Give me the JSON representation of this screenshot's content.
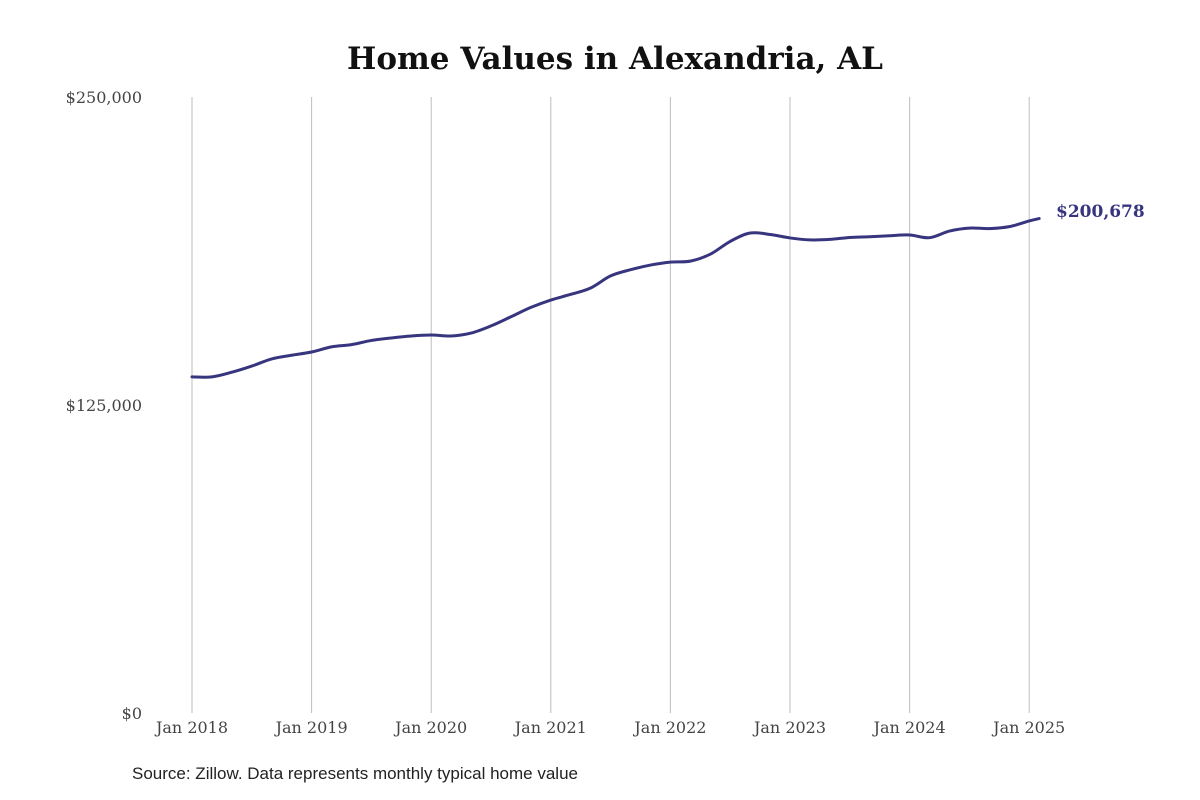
{
  "chart_data": {
    "type": "line",
    "title": "Home Values in Alexandria, AL",
    "xlabel": "",
    "ylabel": "",
    "ylim": [
      0,
      250000
    ],
    "y_ticks": [
      {
        "value": 0,
        "label": "$0"
      },
      {
        "value": 125000,
        "label": "$125,000"
      },
      {
        "value": 250000,
        "label": "$250,000"
      }
    ],
    "x_ticks": [
      {
        "date": "2018-01",
        "label": "Jan 2018"
      },
      {
        "date": "2019-01",
        "label": "Jan 2019"
      },
      {
        "date": "2020-01",
        "label": "Jan 2020"
      },
      {
        "date": "2021-01",
        "label": "Jan 2021"
      },
      {
        "date": "2022-01",
        "label": "Jan 2022"
      },
      {
        "date": "2023-01",
        "label": "Jan 2023"
      },
      {
        "date": "2024-01",
        "label": "Jan 2024"
      },
      {
        "date": "2025-01",
        "label": "Jan 2025"
      }
    ],
    "grid": "vertical",
    "line_color": "#38357f",
    "end_label": "$200,678",
    "series": [
      {
        "points": [
          [
            "2018-01",
            136400
          ],
          [
            "2018-03",
            136400
          ],
          [
            "2018-05",
            138300
          ],
          [
            "2018-07",
            140800
          ],
          [
            "2018-09",
            143700
          ],
          [
            "2018-11",
            145200
          ],
          [
            "2019-01",
            146500
          ],
          [
            "2019-03",
            148600
          ],
          [
            "2019-05",
            149500
          ],
          [
            "2019-07",
            151200
          ],
          [
            "2019-09",
            152200
          ],
          [
            "2019-11",
            153000
          ],
          [
            "2020-01",
            153400
          ],
          [
            "2020-03",
            153000
          ],
          [
            "2020-05",
            154200
          ],
          [
            "2020-07",
            157100
          ],
          [
            "2020-09",
            160800
          ],
          [
            "2020-11",
            164600
          ],
          [
            "2021-01",
            167600
          ],
          [
            "2021-03",
            169900
          ],
          [
            "2021-05",
            172500
          ],
          [
            "2021-07",
            177400
          ],
          [
            "2021-09",
            179900
          ],
          [
            "2021-11",
            181800
          ],
          [
            "2022-01",
            183000
          ],
          [
            "2022-03",
            183400
          ],
          [
            "2022-05",
            186200
          ],
          [
            "2022-07",
            191400
          ],
          [
            "2022-09",
            194800
          ],
          [
            "2022-11",
            194200
          ],
          [
            "2023-01",
            192800
          ],
          [
            "2023-03",
            192000
          ],
          [
            "2023-05",
            192200
          ],
          [
            "2023-07",
            193000
          ],
          [
            "2023-09",
            193300
          ],
          [
            "2023-11",
            193700
          ],
          [
            "2024-01",
            194000
          ],
          [
            "2024-03",
            192900
          ],
          [
            "2024-05",
            195600
          ],
          [
            "2024-07",
            196800
          ],
          [
            "2024-09",
            196600
          ],
          [
            "2024-11",
            197400
          ],
          [
            "2025-01",
            199700
          ],
          [
            "2025-02",
            200678
          ]
        ]
      }
    ]
  },
  "source": "Source: Zillow. Data represents monthly typical home value"
}
